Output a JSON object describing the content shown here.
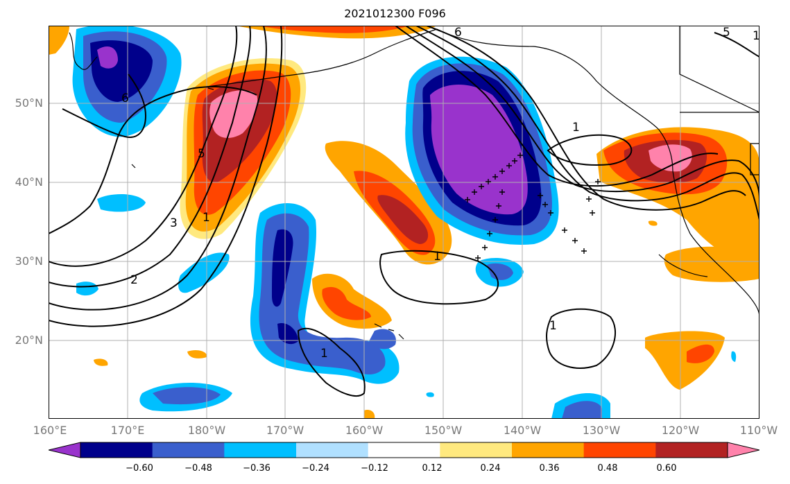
{
  "title": "2021012300 F096",
  "lat_labels": [
    "50°N",
    "40°N",
    "30°N",
    "20°N"
  ],
  "lon_labels": [
    "160°E",
    "170°E",
    "180°W",
    "170°W",
    "160°W",
    "150°W",
    "140°W",
    "130°W",
    "120°W",
    "110°W"
  ],
  "contour_labels": [
    "6",
    "6",
    "5",
    "5",
    "3",
    "1",
    "2",
    "1",
    "1",
    "1",
    "1",
    "1"
  ],
  "colorbar": {
    "ticks": [
      "−0.60",
      "−0.48",
      "−0.36",
      "−0.24",
      "−0.12",
      "0.12",
      "0.24",
      "0.36",
      "0.48",
      "0.60"
    ],
    "colors": [
      "#9933cc",
      "#00008b",
      "#3a5fcd",
      "#00bfff",
      "#b0e0ff",
      "#ffffff",
      "#ffe97f",
      "#ffa500",
      "#ff4500",
      "#b22222",
      "#ff82ab"
    ]
  },
  "colors": {
    "grid": "#b0b0b0",
    "contour": "#000000",
    "coast": "#000000"
  }
}
